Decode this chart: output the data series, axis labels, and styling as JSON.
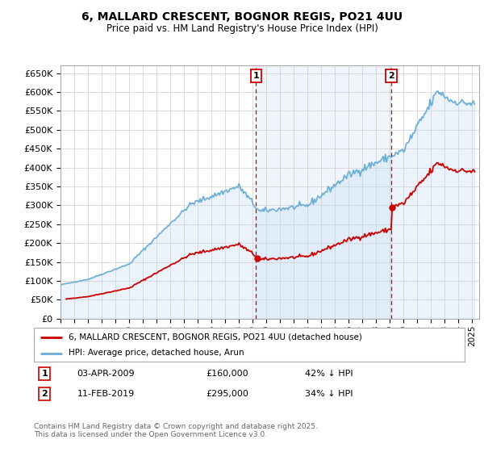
{
  "title": "6, MALLARD CRESCENT, BOGNOR REGIS, PO21 4UU",
  "subtitle": "Price paid vs. HM Land Registry's House Price Index (HPI)",
  "ylabel_ticks": [
    "£0",
    "£50K",
    "£100K",
    "£150K",
    "£200K",
    "£250K",
    "£300K",
    "£350K",
    "£400K",
    "£450K",
    "£500K",
    "£550K",
    "£600K",
    "£650K"
  ],
  "ytick_values": [
    0,
    50000,
    100000,
    150000,
    200000,
    250000,
    300000,
    350000,
    400000,
    450000,
    500000,
    550000,
    600000,
    650000
  ],
  "ylim": [
    0,
    670000
  ],
  "xlim_start": 1995.0,
  "xlim_end": 2025.5,
  "xticks": [
    1995,
    1996,
    1997,
    1998,
    1999,
    2000,
    2001,
    2002,
    2003,
    2004,
    2005,
    2006,
    2007,
    2008,
    2009,
    2010,
    2011,
    2012,
    2013,
    2014,
    2015,
    2016,
    2017,
    2018,
    2019,
    2020,
    2021,
    2022,
    2023,
    2024,
    2025
  ],
  "hpi_color": "#6aaed6",
  "hpi_fill_color": "#c6dcf0",
  "price_color": "#cc0000",
  "annotation_color": "#cc0000",
  "grid_color": "#cccccc",
  "background_color": "#ffffff",
  "shaded_region_color": "#ddeeff",
  "legend_label_price": "6, MALLARD CRESCENT, BOGNOR REGIS, PO21 4UU (detached house)",
  "legend_label_hpi": "HPI: Average price, detached house, Arun",
  "annotation1_label": "1",
  "annotation1_date": "03-APR-2009",
  "annotation1_price": "£160,000",
  "annotation1_pct": "42% ↓ HPI",
  "annotation1_year": 2009.25,
  "annotation1_value": 160000,
  "annotation2_label": "2",
  "annotation2_date": "11-FEB-2019",
  "annotation2_price": "£295,000",
  "annotation2_pct": "34% ↓ HPI",
  "annotation2_year": 2019.1,
  "annotation2_value": 295000,
  "purchase1_year": 1995.4,
  "purchase1_value": 52000,
  "footer": "Contains HM Land Registry data © Crown copyright and database right 2025.\nThis data is licensed under the Open Government Licence v3.0."
}
